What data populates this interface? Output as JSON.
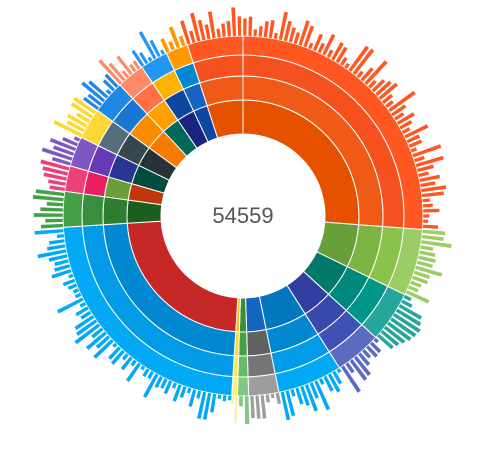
{
  "center_value": "54559",
  "chart_data": {
    "type": "sunburst",
    "total": 54559,
    "levels": 4,
    "segments": [
      {
        "color": "#e65100",
        "start": 0.0,
        "end": 0.262,
        "shades": [
          "#e65100",
          "#ef5a16",
          "#f4511e",
          "#ff5722"
        ]
      },
      {
        "color": "#689f38",
        "start": 0.262,
        "end": 0.322,
        "shades": [
          "#689f38",
          "#7cb342",
          "#8bc34a",
          "#9ccc65"
        ]
      },
      {
        "color": "#00897b",
        "start": 0.322,
        "end": 0.368,
        "shades": [
          "#00796b",
          "#00897b",
          "#009688",
          "#26a69a"
        ]
      },
      {
        "color": "#3949ab",
        "start": 0.368,
        "end": 0.41,
        "shades": [
          "#303f9f",
          "#3949ab",
          "#3f51b5",
          "#5c6bc0"
        ]
      },
      {
        "color": "#0288d1",
        "start": 0.41,
        "end": 0.468,
        "shades": [
          "#0277bd",
          "#0288d1",
          "#039be5",
          "#03a9f4"
        ]
      },
      {
        "color": "#1976d2",
        "start": 0.468,
        "end": 0.495,
        "shades": [
          "#1565c0",
          "#616161",
          "#757575",
          "#9e9e9e"
        ]
      },
      {
        "color": "#43a047",
        "start": 0.495,
        "end": 0.505,
        "shades": [
          "#388e3c",
          "#43a047",
          "#66bb6a",
          "#81c784"
        ]
      },
      {
        "color": "#fbc02d",
        "start": 0.505,
        "end": 0.51,
        "shades": [
          "#fbc02d",
          "#fdd835",
          "#ffeb3b",
          "#fff176"
        ]
      },
      {
        "color": "#b71c1c",
        "start": 0.51,
        "end": 0.74,
        "shades": [
          "#c62828",
          "#0288d1",
          "#039be5",
          "#03a9f4"
        ]
      },
      {
        "color": "#1b5e20",
        "start": 0.74,
        "end": 0.772,
        "shades": [
          "#1b5e20",
          "#2e7d32",
          "#388e3c",
          "#43a047"
        ]
      },
      {
        "color": "#bf360c",
        "start": 0.772,
        "end": 0.795,
        "shades": [
          "#bf360c",
          "#689f38",
          "#e91e63",
          "#ec407a"
        ]
      },
      {
        "color": "#004d40",
        "start": 0.795,
        "end": 0.822,
        "shades": [
          "#004d40",
          "#283593",
          "#673ab7",
          "#7e57c2"
        ]
      },
      {
        "color": "#263238",
        "start": 0.822,
        "end": 0.85,
        "shades": [
          "#263238",
          "#37474f",
          "#546e7a",
          "#fdd835"
        ]
      },
      {
        "color": "#f57c00",
        "start": 0.85,
        "end": 0.88,
        "shades": [
          "#f57c00",
          "#fb8c00",
          "#1976d2",
          "#1e88e5"
        ]
      },
      {
        "color": "#00695c",
        "start": 0.88,
        "end": 0.905,
        "shades": [
          "#00695c",
          "#ffa000",
          "#ff7043",
          "#ff8a65"
        ]
      },
      {
        "color": "#1a237e",
        "start": 0.905,
        "end": 0.93,
        "shades": [
          "#1a237e",
          "#0d47a1",
          "#ffb300",
          "#2196f3"
        ]
      },
      {
        "color": "#0d47a1",
        "start": 0.93,
        "end": 0.95,
        "shades": [
          "#0d47a1",
          "#1565c0",
          "#0288d1",
          "#ff9800"
        ]
      },
      {
        "color": "#e65100",
        "start": 0.95,
        "end": 1.0,
        "shades": [
          "#e65100",
          "#ef5a16",
          "#f4511e",
          "#ff5722"
        ]
      }
    ]
  }
}
